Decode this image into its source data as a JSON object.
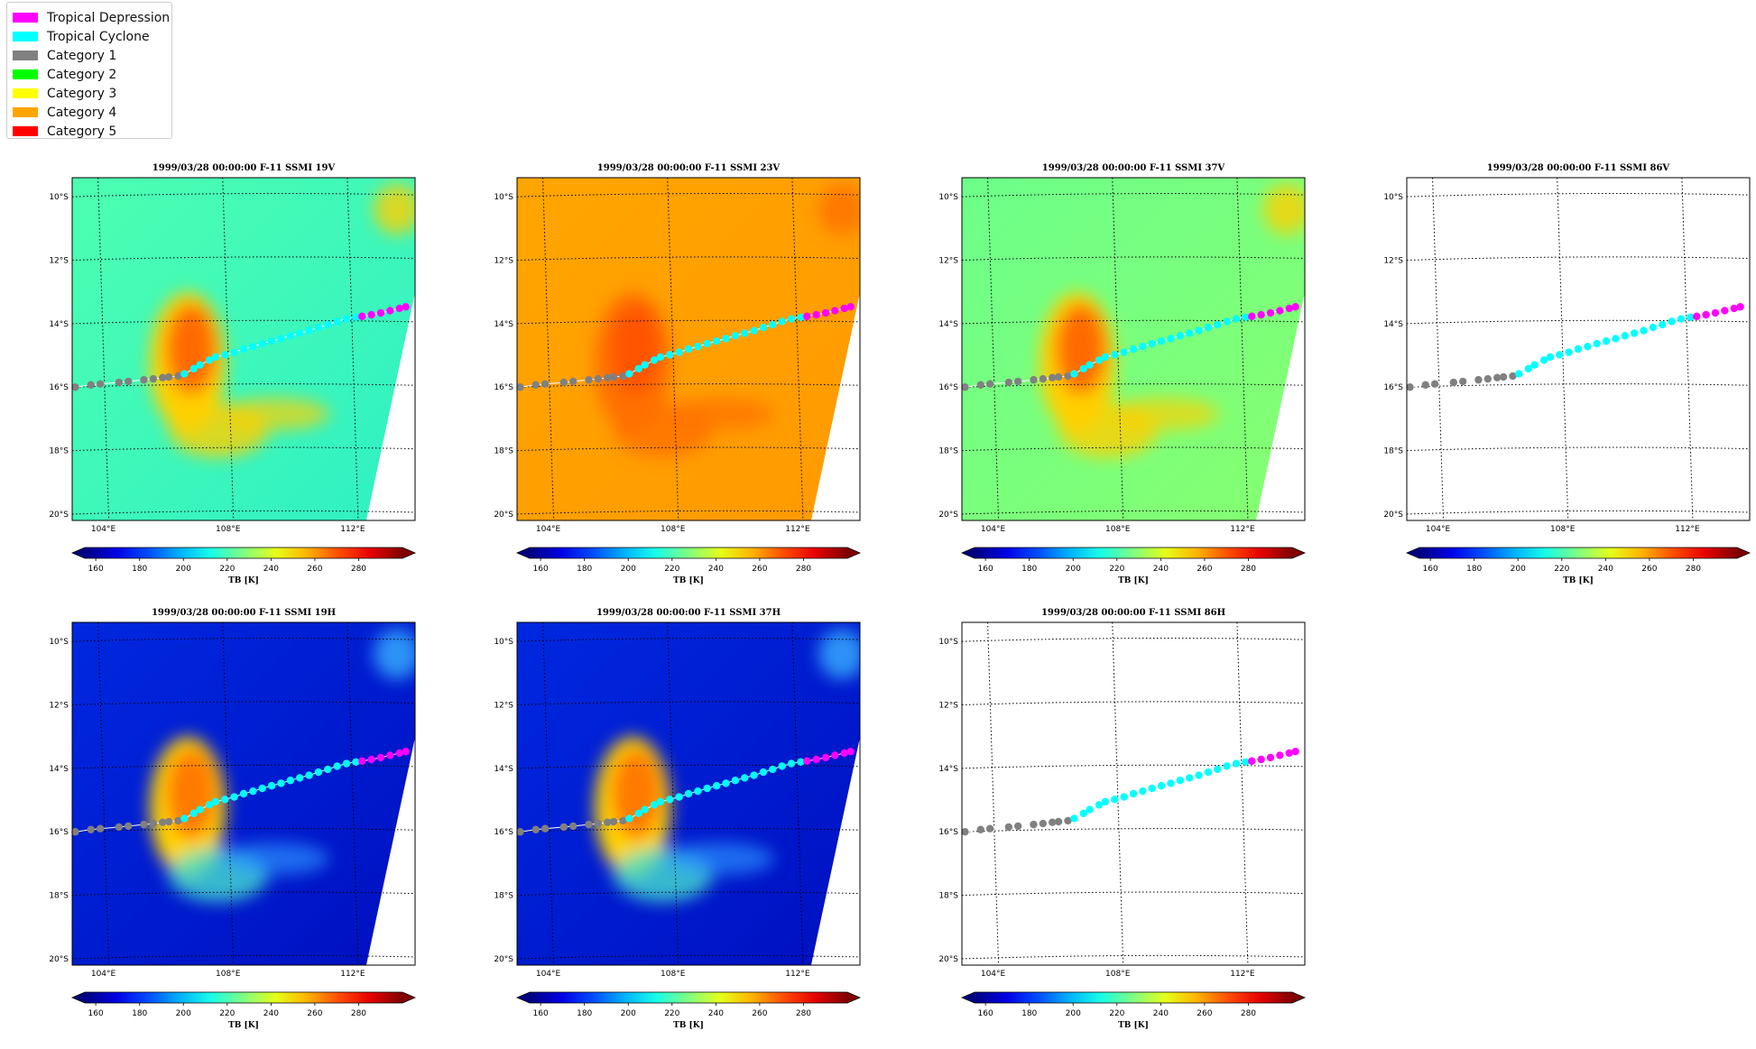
{
  "legend": {
    "items": [
      {
        "label": "Tropical Depression",
        "color": "#ff00ff"
      },
      {
        "label": "Tropical Cyclone",
        "color": "#00ffff"
      },
      {
        "label": "Category 1",
        "color": "#808080"
      },
      {
        "label": "Category 2",
        "color": "#00ff00"
      },
      {
        "label": "Category 3",
        "color": "#ffff00"
      },
      {
        "label": "Category 4",
        "color": "#ffa500"
      },
      {
        "label": "Category 5",
        "color": "#ff0000"
      }
    ]
  },
  "chart_data": [
    {
      "type": "heatmap",
      "title": "1999/03/28 00:00:00  F-11 SSMI 19V",
      "background": "green-cyan",
      "storm": "warm",
      "has_data": true
    },
    {
      "type": "heatmap",
      "title": "1999/03/28 00:00:00  F-11 SSMI 23V",
      "background": "orange",
      "storm": "warm",
      "has_data": true
    },
    {
      "type": "heatmap",
      "title": "1999/03/28 00:00:00  F-11 SSMI 37V",
      "background": "green",
      "storm": "warm",
      "has_data": true
    },
    {
      "type": "heatmap",
      "title": "1999/03/28 00:00:00  F-11 SSMI 86V",
      "background": "none",
      "storm": "none",
      "has_data": false
    },
    {
      "type": "heatmap",
      "title": "1999/03/28 00:00:00  F-11 SSMI 19H",
      "background": "blue",
      "storm": "warm",
      "has_data": true
    },
    {
      "type": "heatmap",
      "title": "1999/03/28 00:00:00  F-11 SSMI 37H",
      "background": "blue",
      "storm": "warm",
      "has_data": true
    },
    {
      "type": "heatmap",
      "title": "1999/03/28 00:00:00  F-11 SSMI 86H",
      "background": "none",
      "storm": "none",
      "has_data": false
    }
  ],
  "axes": {
    "lon_ticks": [
      "104°E",
      "108°E",
      "112°E"
    ],
    "lon_values": [
      104,
      108,
      112
    ],
    "lat_ticks": [
      "10°S",
      "12°S",
      "14°S",
      "16°S",
      "18°S",
      "20°S"
    ],
    "lat_values": [
      -10,
      -12,
      -14,
      -16,
      -18,
      -20
    ],
    "lon_range": [
      103,
      114
    ],
    "lat_range": [
      -20.2,
      -9.4
    ]
  },
  "colorbar": {
    "label": "TB [K]",
    "ticks": [
      "160",
      "180",
      "200",
      "220",
      "240",
      "260",
      "280"
    ],
    "tick_values": [
      160,
      180,
      200,
      220,
      240,
      260,
      280
    ],
    "range": [
      155,
      300
    ],
    "colormap": "jet"
  },
  "track": {
    "lon": [
      103.1,
      103.6,
      103.9,
      104.5,
      104.8,
      105.3,
      105.6,
      105.9,
      106.1,
      106.4,
      106.6,
      106.9,
      107.1,
      107.4,
      107.6,
      107.9,
      108.2,
      108.5,
      108.8,
      109.1,
      109.4,
      109.7,
      110.0,
      110.3,
      110.6,
      110.9,
      111.2,
      111.5,
      111.8,
      112.1,
      112.3,
      112.6,
      112.9,
      113.2,
      113.5,
      113.7
    ],
    "lat": [
      -16.0,
      -15.93,
      -15.9,
      -15.85,
      -15.82,
      -15.77,
      -15.74,
      -15.7,
      -15.68,
      -15.65,
      -15.58,
      -15.42,
      -15.3,
      -15.15,
      -15.05,
      -14.98,
      -14.9,
      -14.8,
      -14.72,
      -14.63,
      -14.55,
      -14.47,
      -14.38,
      -14.3,
      -14.22,
      -14.12,
      -14.03,
      -13.93,
      -13.85,
      -13.8,
      -13.77,
      -13.72,
      -13.66,
      -13.59,
      -13.52,
      -13.47
    ],
    "category": [
      "Category 1",
      "Category 1",
      "Category 1",
      "Category 1",
      "Category 1",
      "Category 1",
      "Category 1",
      "Category 1",
      "Category 1",
      "Category 1",
      "Tropical Cyclone",
      "Tropical Cyclone",
      "Tropical Cyclone",
      "Tropical Cyclone",
      "Tropical Cyclone",
      "Tropical Cyclone",
      "Tropical Cyclone",
      "Tropical Cyclone",
      "Tropical Cyclone",
      "Tropical Cyclone",
      "Tropical Cyclone",
      "Tropical Cyclone",
      "Tropical Cyclone",
      "Tropical Cyclone",
      "Tropical Cyclone",
      "Tropical Cyclone",
      "Tropical Cyclone",
      "Tropical Cyclone",
      "Tropical Cyclone",
      "Tropical Cyclone",
      "Tropical Depression",
      "Tropical Depression",
      "Tropical Depression",
      "Tropical Depression",
      "Tropical Depression",
      "Tropical Depression"
    ]
  }
}
